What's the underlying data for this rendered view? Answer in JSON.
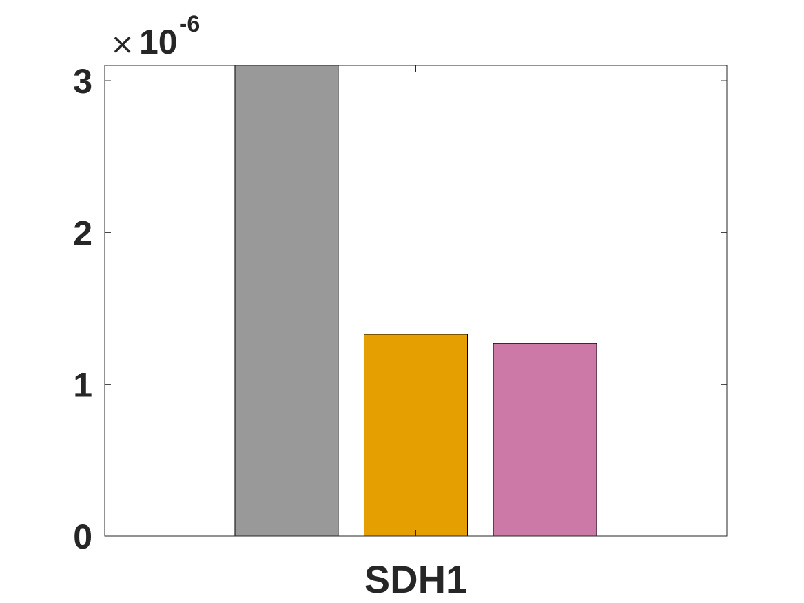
{
  "chart_data": {
    "type": "bar",
    "categories": [
      "SDH1"
    ],
    "series": [
      {
        "values": [
          3.1e-06
        ],
        "color": "#999999"
      },
      {
        "values": [
          1.33e-06
        ],
        "color": "#E69F00"
      },
      {
        "values": [
          1.27e-06
        ],
        "color": "#CC79A7"
      }
    ],
    "ylim": [
      0,
      3.1e-06
    ],
    "yticks": [
      0,
      1e-06,
      2e-06,
      3e-06
    ],
    "ytick_labels": [
      "0",
      "1",
      "2",
      "3"
    ],
    "y_exponent": {
      "times": "×",
      "base": "10",
      "power": "-6"
    },
    "grid": false,
    "legend": false,
    "xlabel": "",
    "ylabel": ""
  }
}
